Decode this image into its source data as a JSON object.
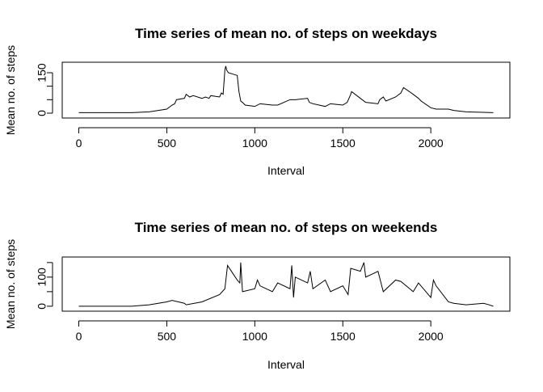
{
  "chart_data": [
    {
      "type": "line",
      "title": "Time series of mean no. of steps on weekdays",
      "x_label": "Interval",
      "y_label": "Mean no. of steps",
      "color": "#000000",
      "xlim": [
        -94.2,
        2449.2
      ],
      "xticks": [
        0,
        500,
        1000,
        1500,
        2000
      ],
      "ylim": [
        -18,
        189
      ],
      "yticks": [
        0,
        150
      ],
      "ytick_marks": [
        0,
        50,
        100,
        150
      ],
      "x": [
        0,
        300,
        400,
        500,
        530,
        545,
        555,
        600,
        610,
        630,
        650,
        700,
        720,
        740,
        750,
        800,
        810,
        820,
        830,
        835,
        840,
        850,
        900,
        910,
        920,
        930,
        945,
        1000,
        1030,
        1100,
        1130,
        1200,
        1230,
        1300,
        1310,
        1330,
        1400,
        1430,
        1500,
        1525,
        1545,
        1550,
        1600,
        1630,
        1700,
        1710,
        1730,
        1745,
        1800,
        1830,
        1845,
        1900,
        1930,
        1945,
        2000,
        2030,
        2100,
        2130,
        2200,
        2300,
        2355
      ],
      "values": [
        2,
        2,
        5,
        15,
        30,
        35,
        50,
        55,
        70,
        60,
        65,
        55,
        60,
        55,
        65,
        60,
        75,
        70,
        160,
        175,
        160,
        150,
        140,
        80,
        45,
        40,
        30,
        25,
        35,
        30,
        30,
        50,
        50,
        55,
        40,
        35,
        25,
        35,
        30,
        40,
        70,
        80,
        55,
        40,
        35,
        50,
        60,
        45,
        60,
        75,
        95,
        70,
        55,
        45,
        20,
        15,
        15,
        10,
        5,
        3,
        2
      ]
    },
    {
      "type": "line",
      "title": "Time series of mean no. of steps on weekends",
      "x_label": "Interval",
      "y_label": "Mean no. of steps",
      "color": "#000000",
      "xlim": [
        -94.2,
        2449.2
      ],
      "xticks": [
        0,
        500,
        1000,
        1500,
        2000
      ],
      "ylim": [
        -17,
        169
      ],
      "yticks": [
        0,
        100
      ],
      "ytick_marks": [
        0,
        50,
        100,
        150
      ],
      "x": [
        0,
        300,
        400,
        500,
        530,
        600,
        610,
        700,
        800,
        830,
        845,
        900,
        915,
        920,
        930,
        1000,
        1015,
        1030,
        1100,
        1130,
        1200,
        1210,
        1220,
        1230,
        1300,
        1315,
        1330,
        1400,
        1430,
        1500,
        1530,
        1545,
        1600,
        1620,
        1630,
        1700,
        1730,
        1800,
        1830,
        1900,
        1930,
        2000,
        2015,
        2030,
        2100,
        2130,
        2200,
        2300,
        2330,
        2355
      ],
      "values": [
        0,
        0,
        5,
        15,
        20,
        10,
        5,
        15,
        40,
        60,
        140,
        90,
        80,
        150,
        50,
        60,
        90,
        70,
        50,
        80,
        60,
        140,
        30,
        100,
        80,
        120,
        60,
        90,
        50,
        70,
        40,
        130,
        120,
        150,
        100,
        120,
        50,
        90,
        85,
        50,
        80,
        30,
        90,
        70,
        15,
        10,
        5,
        10,
        5,
        0
      ]
    }
  ]
}
